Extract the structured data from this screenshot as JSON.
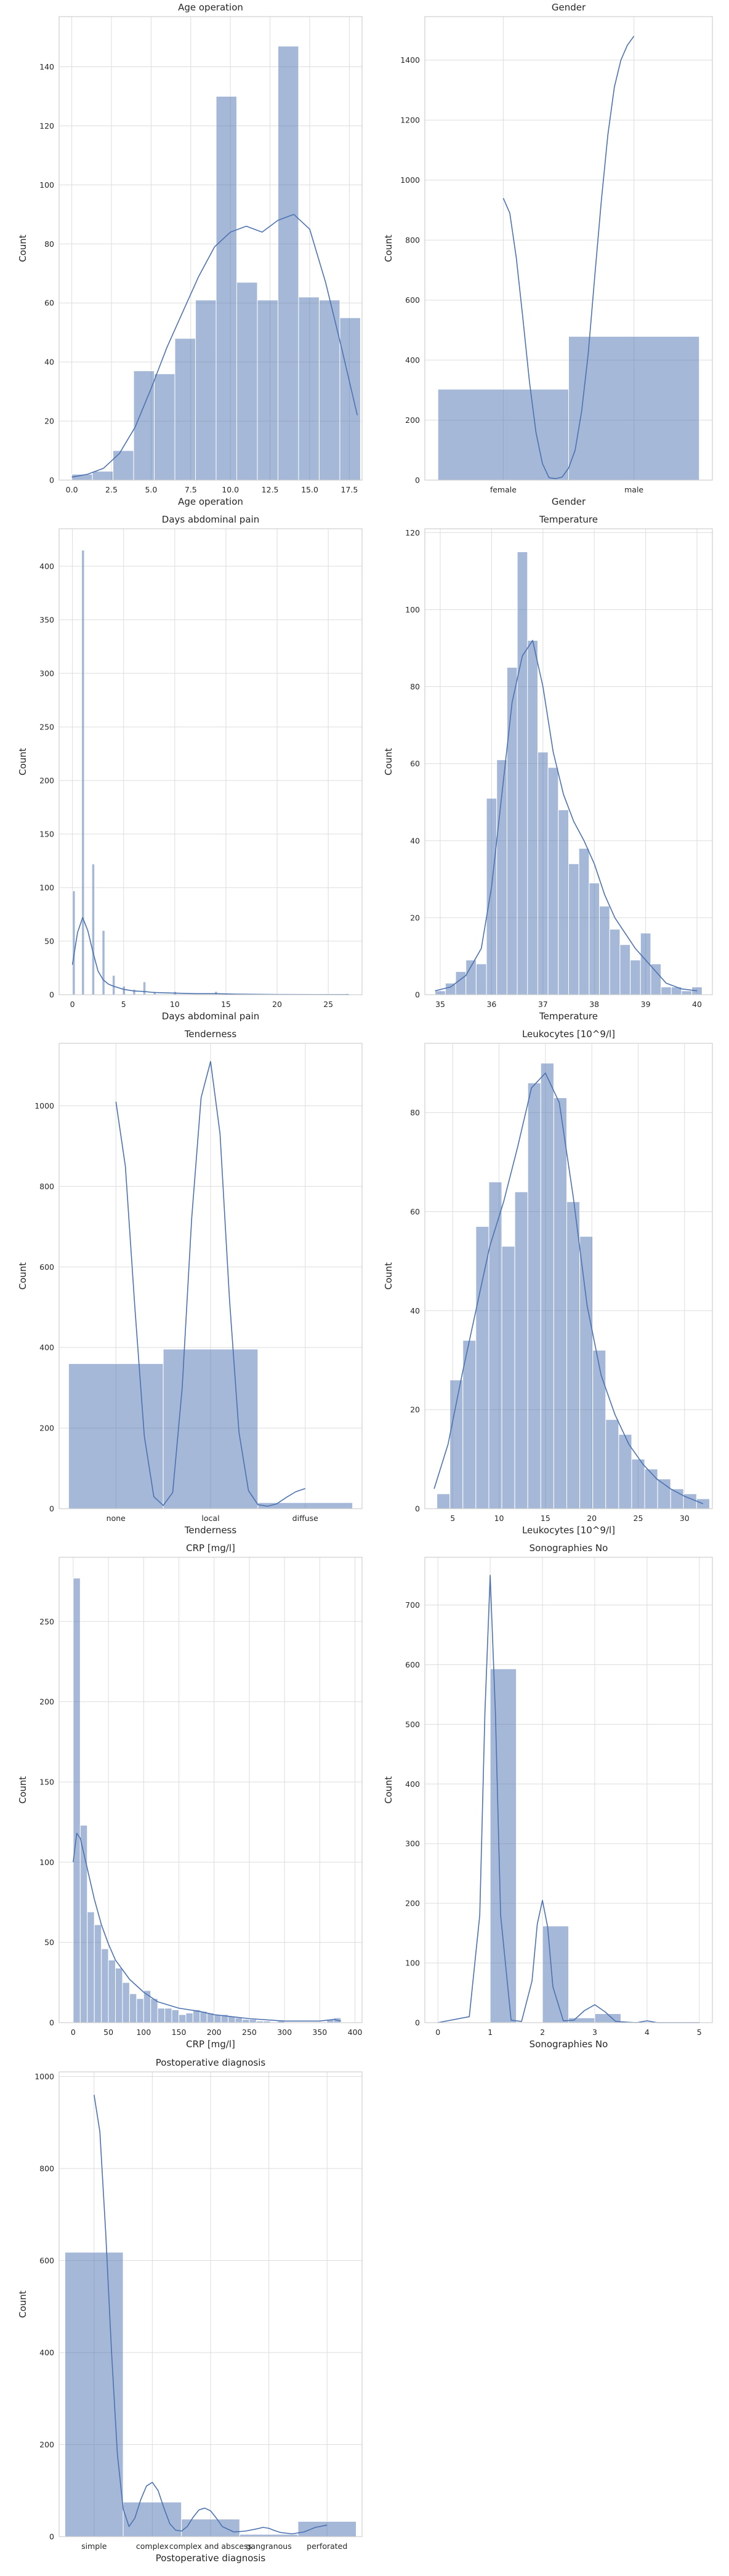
{
  "style": {
    "bar_fill": "#4c72b0",
    "bar_opacity": 0.5,
    "kde_color": "#4c72b0",
    "grid_color": "#dddddd",
    "spine_color": "#cfcfcf"
  },
  "chart_data": [
    {
      "type": "bar",
      "subtype": "histogram_kde",
      "title": "Age operation",
      "xlabel": "Age operation",
      "ylabel": "Count",
      "xlim": [
        -0.8,
        18.3
      ],
      "ylim": [
        0,
        157
      ],
      "grid": true,
      "xticks": [
        0,
        2.5,
        5,
        7.5,
        10,
        12.5,
        15,
        17.5
      ],
      "xtick_labels": [
        "0.0",
        "2.5",
        "5.0",
        "7.5",
        "10.0",
        "12.5",
        "15.0",
        "17.5"
      ],
      "yticks": [
        0,
        20,
        40,
        60,
        80,
        100,
        120,
        140
      ],
      "bins": [
        [
          0.0,
          1.3,
          2
        ],
        [
          1.3,
          2.6,
          3
        ],
        [
          2.6,
          3.9,
          10
        ],
        [
          3.9,
          5.2,
          37
        ],
        [
          5.2,
          6.5,
          36
        ],
        [
          6.5,
          7.8,
          48
        ],
        [
          7.8,
          9.1,
          61
        ],
        [
          9.1,
          10.4,
          130
        ],
        [
          10.4,
          11.7,
          67
        ],
        [
          11.7,
          13.0,
          61
        ],
        [
          13.0,
          14.3,
          147
        ],
        [
          14.3,
          15.6,
          62
        ],
        [
          15.6,
          16.9,
          61
        ],
        [
          16.9,
          18.2,
          55
        ]
      ],
      "kde": {
        "x": [
          0,
          1,
          2,
          3,
          4,
          5,
          6,
          7,
          8,
          9,
          10,
          11,
          12,
          13,
          14,
          15,
          16,
          17,
          18
        ],
        "y": [
          1,
          2,
          4,
          9,
          18,
          31,
          45,
          57,
          69,
          79,
          84,
          86,
          84,
          88,
          90,
          85,
          67,
          45,
          22
        ]
      }
    },
    {
      "type": "bar",
      "subtype": "histogram_kde",
      "title": "Gender",
      "xlabel": "Gender",
      "ylabel": "Count",
      "xlim": [
        -0.6,
        1.6
      ],
      "ylim": [
        0,
        1545
      ],
      "grid": true,
      "xticks": [
        0,
        1
      ],
      "xtick_labels": [
        "female",
        "male"
      ],
      "yticks": [
        0,
        200,
        400,
        600,
        800,
        1000,
        1200,
        1400
      ],
      "bins": [
        [
          -0.5,
          0.5,
          303
        ],
        [
          0.5,
          1.5,
          479
        ]
      ],
      "kde": {
        "x": [
          0.0,
          0.05,
          0.1,
          0.15,
          0.2,
          0.25,
          0.3,
          0.35,
          0.4,
          0.45,
          0.5,
          0.55,
          0.6,
          0.65,
          0.7,
          0.75,
          0.8,
          0.85,
          0.9,
          0.95,
          1.0
        ],
        "y": [
          940,
          890,
          740,
          540,
          330,
          160,
          55,
          8,
          5,
          10,
          40,
          100,
          230,
          420,
          680,
          930,
          1150,
          1310,
          1400,
          1450,
          1480
        ]
      }
    },
    {
      "type": "bar",
      "subtype": "histogram_kde",
      "title": "Days abdominal pain",
      "xlabel": "Days abdominal pain",
      "ylabel": "Count",
      "xlim": [
        -1.3,
        28.3
      ],
      "ylim": [
        0,
        435
      ],
      "grid": true,
      "xticks": [
        0,
        5,
        10,
        15,
        20,
        25
      ],
      "xtick_labels": [
        "0",
        "5",
        "10",
        "15",
        "20",
        "25"
      ],
      "yticks": [
        0,
        50,
        100,
        150,
        200,
        250,
        300,
        350,
        400
      ],
      "bins": [
        [
          0.0,
          0.27,
          97
        ],
        [
          0.9,
          1.17,
          415
        ],
        [
          1.9,
          2.17,
          122
        ],
        [
          2.9,
          3.17,
          60
        ],
        [
          3.9,
          4.17,
          18
        ],
        [
          4.9,
          5.17,
          8
        ],
        [
          5.9,
          6.17,
          5
        ],
        [
          6.9,
          7.17,
          12
        ],
        [
          7.9,
          8.17,
          3
        ],
        [
          9.9,
          10.17,
          3
        ],
        [
          13.9,
          14.17,
          3
        ],
        [
          26.7,
          26.97,
          1
        ]
      ],
      "kde": {
        "x": [
          0,
          0.5,
          1,
          1.5,
          2,
          2.5,
          3,
          3.5,
          4,
          5,
          6,
          7,
          8,
          10,
          12,
          14,
          16,
          20,
          27
        ],
        "y": [
          28,
          58,
          72,
          60,
          40,
          22,
          14,
          10,
          8,
          5,
          3.5,
          3,
          2,
          1.5,
          1,
          1,
          0.5,
          0.2,
          0.1
        ]
      }
    },
    {
      "type": "bar",
      "subtype": "histogram_kde",
      "title": "Temperature",
      "xlabel": "Temperature",
      "ylabel": "Count",
      "xlim": [
        34.7,
        40.3
      ],
      "ylim": [
        0,
        121
      ],
      "grid": true,
      "xticks": [
        35,
        36,
        37,
        38,
        39,
        40
      ],
      "xtick_labels": [
        "35",
        "36",
        "37",
        "38",
        "39",
        "40"
      ],
      "yticks": [
        0,
        20,
        40,
        60,
        80,
        100,
        120
      ],
      "bins": [
        [
          34.9,
          35.1,
          1
        ],
        [
          35.1,
          35.3,
          3
        ],
        [
          35.3,
          35.5,
          6
        ],
        [
          35.5,
          35.7,
          9
        ],
        [
          35.7,
          35.9,
          8
        ],
        [
          35.9,
          36.1,
          51
        ],
        [
          36.1,
          36.3,
          61
        ],
        [
          36.3,
          36.5,
          85
        ],
        [
          36.5,
          36.7,
          115
        ],
        [
          36.7,
          36.9,
          92
        ],
        [
          36.9,
          37.1,
          63
        ],
        [
          37.1,
          37.3,
          59
        ],
        [
          37.3,
          37.5,
          48
        ],
        [
          37.5,
          37.7,
          34
        ],
        [
          37.7,
          37.9,
          38
        ],
        [
          37.9,
          38.1,
          29
        ],
        [
          38.1,
          38.3,
          23
        ],
        [
          38.3,
          38.5,
          17
        ],
        [
          38.5,
          38.7,
          13
        ],
        [
          38.7,
          38.9,
          9
        ],
        [
          38.9,
          39.1,
          16
        ],
        [
          39.1,
          39.3,
          8
        ],
        [
          39.3,
          39.5,
          2
        ],
        [
          39.5,
          39.7,
          2
        ],
        [
          39.7,
          39.9,
          1
        ],
        [
          39.9,
          40.1,
          2
        ]
      ],
      "kde": {
        "x": [
          34.9,
          35.2,
          35.5,
          35.8,
          36.0,
          36.2,
          36.4,
          36.6,
          36.8,
          37.0,
          37.2,
          37.4,
          37.6,
          37.8,
          38.0,
          38.2,
          38.4,
          38.6,
          38.8,
          39.0,
          39.2,
          39.4,
          39.7,
          40.0
        ],
        "y": [
          1,
          2,
          5,
          12,
          28,
          52,
          76,
          88,
          92,
          80,
          63,
          52,
          45,
          40,
          34,
          26,
          20,
          16,
          12,
          9,
          6,
          3,
          1.5,
          1
        ]
      }
    },
    {
      "type": "bar",
      "subtype": "histogram_kde",
      "title": "Tenderness",
      "xlabel": "Tenderness",
      "ylabel": "Count",
      "xlim": [
        -0.6,
        2.6
      ],
      "ylim": [
        0,
        1155
      ],
      "grid": true,
      "xticks": [
        0,
        1,
        2
      ],
      "xtick_labels": [
        "none",
        "local",
        "diffuse"
      ],
      "yticks": [
        0,
        200,
        400,
        600,
        800,
        1000
      ],
      "bins": [
        [
          -0.5,
          0.5,
          360
        ],
        [
          0.5,
          1.5,
          396
        ],
        [
          1.5,
          2.5,
          15
        ]
      ],
      "kde": {
        "x": [
          0.0,
          0.1,
          0.2,
          0.3,
          0.4,
          0.5,
          0.6,
          0.7,
          0.8,
          0.9,
          1.0,
          1.1,
          1.2,
          1.3,
          1.4,
          1.5,
          1.6,
          1.7,
          1.8,
          1.9,
          2.0
        ],
        "y": [
          1010,
          850,
          500,
          180,
          30,
          8,
          40,
          300,
          720,
          1020,
          1110,
          930,
          520,
          190,
          45,
          10,
          6,
          12,
          28,
          42,
          50
        ]
      }
    },
    {
      "type": "bar",
      "subtype": "histogram_kde",
      "title": "Leukocytes [10^9/l]",
      "xlabel": "Leukocytes [10^9/l]",
      "ylabel": "Count",
      "xlim": [
        2.0,
        33.0
      ],
      "ylim": [
        0,
        94
      ],
      "grid": true,
      "xticks": [
        5,
        10,
        15,
        20,
        25,
        30
      ],
      "xtick_labels": [
        "5",
        "10",
        "15",
        "20",
        "25",
        "30"
      ],
      "yticks": [
        0,
        20,
        40,
        60,
        80
      ],
      "bins": [
        [
          3.3,
          4.7,
          3
        ],
        [
          4.7,
          6.1,
          26
        ],
        [
          6.1,
          7.5,
          34
        ],
        [
          7.5,
          8.9,
          57
        ],
        [
          8.9,
          10.3,
          66
        ],
        [
          10.3,
          11.7,
          53
        ],
        [
          11.7,
          13.1,
          64
        ],
        [
          13.1,
          14.5,
          86
        ],
        [
          14.5,
          15.9,
          90
        ],
        [
          15.9,
          17.3,
          83
        ],
        [
          17.3,
          18.7,
          62
        ],
        [
          18.7,
          20.1,
          55
        ],
        [
          20.1,
          21.5,
          32
        ],
        [
          21.5,
          22.9,
          18
        ],
        [
          22.9,
          24.3,
          15
        ],
        [
          24.3,
          25.7,
          10
        ],
        [
          25.7,
          27.1,
          8
        ],
        [
          27.1,
          28.5,
          6
        ],
        [
          28.5,
          29.9,
          4
        ],
        [
          29.9,
          31.3,
          3
        ],
        [
          31.3,
          32.7,
          2
        ]
      ],
      "kde": {
        "x": [
          3,
          4.5,
          6,
          7.5,
          9,
          10.5,
          12,
          13.5,
          15,
          16.5,
          18,
          19.5,
          21,
          22.5,
          24,
          25.5,
          27,
          28.5,
          30,
          32
        ],
        "y": [
          4,
          13,
          27,
          40,
          53,
          62,
          73,
          85,
          88,
          82,
          63,
          41,
          27,
          19,
          13,
          9,
          6,
          4,
          2.5,
          1
        ]
      }
    },
    {
      "type": "bar",
      "subtype": "histogram_kde",
      "title": "CRP [mg/l]",
      "xlabel": "CRP [mg/l]",
      "ylabel": "Count",
      "xlim": [
        -20,
        410
      ],
      "ylim": [
        0,
        290
      ],
      "grid": true,
      "xticks": [
        0,
        50,
        100,
        150,
        200,
        250,
        300,
        350,
        400
      ],
      "xtick_labels": [
        "0",
        "50",
        "100",
        "150",
        "200",
        "250",
        "300",
        "350",
        "400"
      ],
      "yticks": [
        0,
        50,
        100,
        150,
        200,
        250
      ],
      "bins": [
        [
          0,
          10,
          277
        ],
        [
          10,
          20,
          123
        ],
        [
          20,
          30,
          69
        ],
        [
          30,
          40,
          61
        ],
        [
          40,
          50,
          46
        ],
        [
          50,
          60,
          39
        ],
        [
          60,
          70,
          34
        ],
        [
          70,
          80,
          25
        ],
        [
          80,
          90,
          18
        ],
        [
          90,
          100,
          15
        ],
        [
          100,
          110,
          20
        ],
        [
          110,
          120,
          15
        ],
        [
          120,
          130,
          9
        ],
        [
          130,
          140,
          9
        ],
        [
          140,
          150,
          8
        ],
        [
          150,
          160,
          5
        ],
        [
          160,
          170,
          6
        ],
        [
          170,
          180,
          8
        ],
        [
          180,
          190,
          7
        ],
        [
          190,
          200,
          6
        ],
        [
          200,
          210,
          5
        ],
        [
          210,
          220,
          5
        ],
        [
          220,
          230,
          4
        ],
        [
          230,
          240,
          3
        ],
        [
          240,
          250,
          2
        ],
        [
          250,
          260,
          2
        ],
        [
          260,
          270,
          1
        ],
        [
          270,
          280,
          1
        ],
        [
          290,
          300,
          1
        ],
        [
          360,
          370,
          2
        ],
        [
          370,
          380,
          3
        ]
      ],
      "kde": {
        "x": [
          0,
          5,
          10,
          20,
          30,
          40,
          50,
          60,
          80,
          100,
          120,
          150,
          180,
          200,
          250,
          300,
          350,
          370,
          380
        ],
        "y": [
          100,
          118,
          115,
          96,
          77,
          61,
          49,
          39,
          27,
          19,
          13,
          9,
          7,
          5,
          2.5,
          1,
          1,
          2,
          1
        ]
      }
    },
    {
      "type": "bar",
      "subtype": "histogram_kde",
      "title": "Sonographies No",
      "xlabel": "Sonographies No",
      "ylabel": "Count",
      "xlim": [
        -0.25,
        5.25
      ],
      "ylim": [
        0,
        780
      ],
      "grid": true,
      "xticks": [
        0,
        1,
        2,
        3,
        4,
        5
      ],
      "xtick_labels": [
        "0",
        "1",
        "2",
        "3",
        "4",
        "5"
      ],
      "yticks": [
        0,
        100,
        200,
        300,
        400,
        500,
        600,
        700
      ],
      "bins": [
        [
          1.0,
          1.5,
          593
        ],
        [
          2.0,
          2.5,
          162
        ],
        [
          2.5,
          3.0,
          8
        ],
        [
          3.0,
          3.5,
          15
        ]
      ],
      "kde": {
        "x": [
          0,
          0.6,
          0.8,
          0.9,
          1.0,
          1.1,
          1.2,
          1.4,
          1.6,
          1.8,
          1.9,
          2.0,
          2.1,
          2.2,
          2.4,
          2.6,
          2.8,
          3.0,
          3.2,
          3.4,
          3.8,
          4.0,
          4.2,
          5.0
        ],
        "y": [
          0,
          10,
          180,
          520,
          750,
          520,
          180,
          4,
          2,
          70,
          165,
          205,
          160,
          60,
          3,
          4,
          20,
          30,
          18,
          2,
          0,
          3,
          0,
          0
        ]
      }
    },
    {
      "type": "bar",
      "subtype": "histogram_kde",
      "title": "Postoperative diagnosis",
      "xlabel": "Postoperative diagnosis",
      "ylabel": "Count",
      "xlim": [
        -0.6,
        4.6
      ],
      "ylim": [
        0,
        1010
      ],
      "grid": true,
      "xticks": [
        0,
        1,
        2,
        3,
        4
      ],
      "xtick_labels": [
        "simple",
        "complex",
        "complex and abscess",
        "gangranous",
        "perforated"
      ],
      "yticks": [
        0,
        200,
        400,
        600,
        800,
        1000
      ],
      "bins": [
        [
          -0.5,
          0.5,
          618
        ],
        [
          0.5,
          1.5,
          75
        ],
        [
          1.5,
          2.5,
          38
        ],
        [
          2.5,
          3.5,
          5
        ],
        [
          3.5,
          4.5,
          33
        ]
      ],
      "kde": {
        "x": [
          0.0,
          0.1,
          0.2,
          0.3,
          0.4,
          0.5,
          0.6,
          0.7,
          0.8,
          0.9,
          1.0,
          1.1,
          1.2,
          1.3,
          1.4,
          1.5,
          1.6,
          1.7,
          1.8,
          1.9,
          2.0,
          2.1,
          2.2,
          2.4,
          2.6,
          2.8,
          2.9,
          3.0,
          3.1,
          3.2,
          3.4,
          3.6,
          3.8,
          4.0
        ],
        "y": [
          960,
          880,
          660,
          400,
          180,
          60,
          22,
          40,
          80,
          110,
          118,
          100,
          62,
          28,
          14,
          12,
          22,
          42,
          58,
          62,
          56,
          40,
          22,
          10,
          12,
          17,
          20,
          18,
          13,
          9,
          6,
          10,
          20,
          25
        ]
      }
    }
  ]
}
